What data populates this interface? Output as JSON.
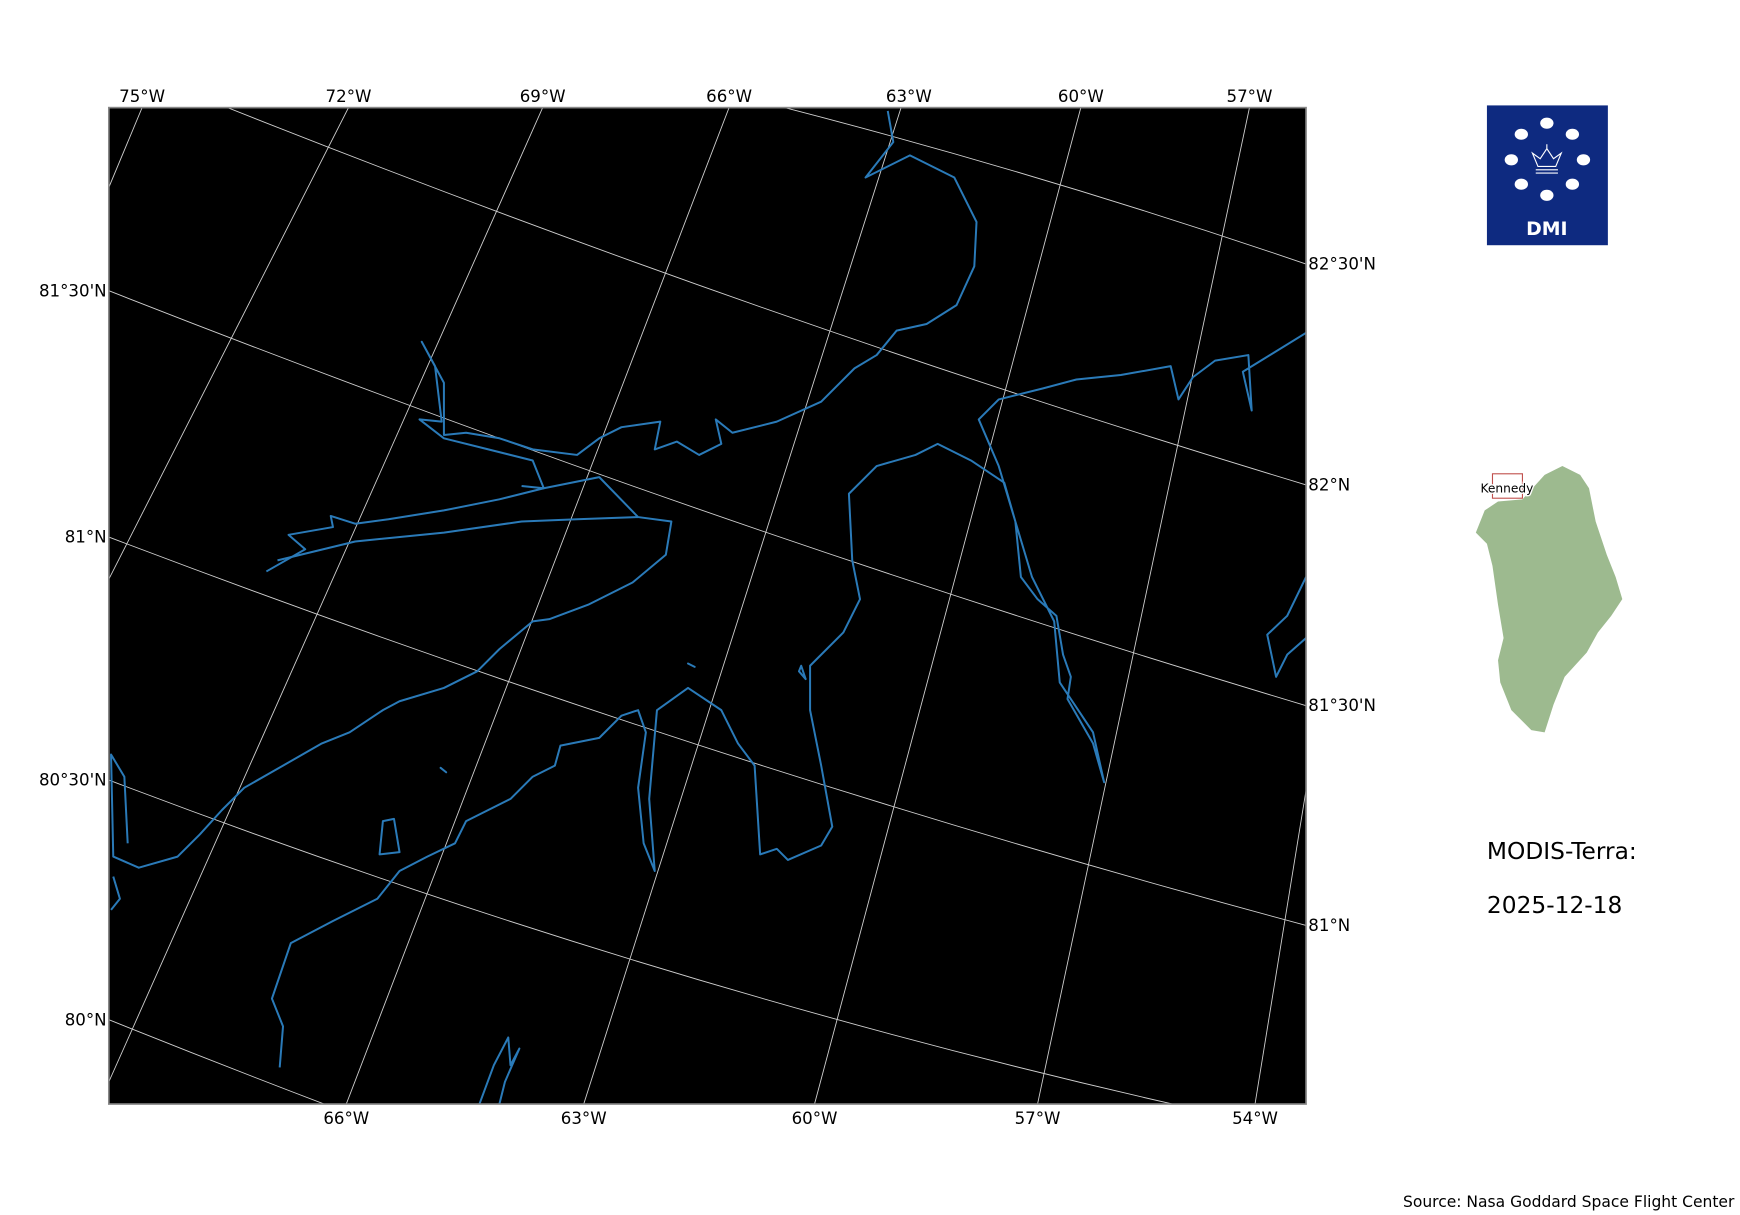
{
  "map": {
    "background": "#000000",
    "coastline_color": "#2a7ab8",
    "gridline_color": "#d0d0d0",
    "top_lon_labels": [
      "75°W",
      "72°W",
      "69°W",
      "66°W",
      "63°W",
      "60°W",
      "57°W"
    ],
    "bottom_lon_labels": [
      "66°W",
      "63°W",
      "60°W",
      "57°W",
      "54°W"
    ],
    "left_lat_labels": [
      "81°30'N",
      "81°N",
      "80°30'N",
      "80°N"
    ],
    "right_lat_labels": [
      "82°30'N",
      "82°N",
      "81°30'N",
      "81°N"
    ]
  },
  "logo": {
    "text": "DMI",
    "color": "#0e2a80"
  },
  "inset": {
    "region_label": "Kennedy",
    "land_color": "#9dba8f",
    "box_color": "#c0504d"
  },
  "info": {
    "sensor": "MODIS-Terra:",
    "date": "2025-12-18"
  },
  "footer": {
    "source": "Source: Nasa Goddard Space Flight Center"
  }
}
